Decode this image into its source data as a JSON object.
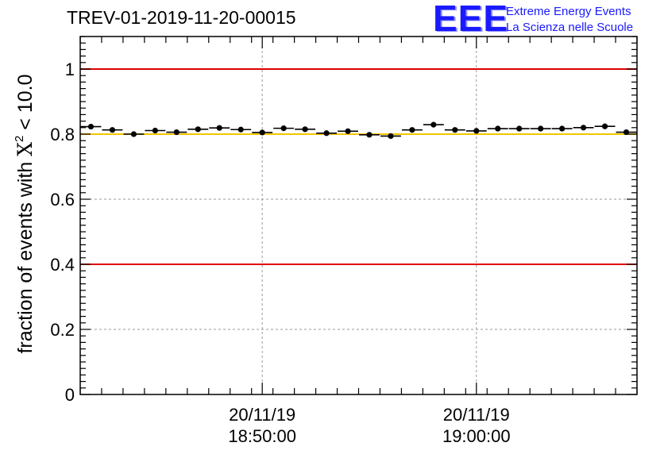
{
  "header": {
    "title": "TREV-01-2019-11-20-00015",
    "logo_letters": "EEE",
    "logo_line1": "Extreme Energy Events",
    "logo_line2": "La Scienza nelle Scuole"
  },
  "colors": {
    "threshold_red": "#e00000",
    "threshold_yellow": "#f5c400",
    "logo_blue": "#1a1aff",
    "marker": "#000000",
    "grid": "#999999"
  },
  "chart_data": {
    "type": "scatter",
    "title": "TREV-01-2019-11-20-00015",
    "ylabel_prefix": "fraction of events with ",
    "ylabel_symbol": "X",
    "ylabel_sup": "2",
    "ylabel_suffix": " < 10.0",
    "xlabel": "",
    "ylim": [
      0,
      1.1
    ],
    "yticks": [
      0,
      0.2,
      0.4,
      0.6,
      0.8,
      1
    ],
    "ytick_labels": [
      "0",
      "0.2",
      "0.4",
      "0.6",
      "0.8",
      "1"
    ],
    "xlim": [
      0,
      26
    ],
    "xticks": [
      8.5,
      18.5
    ],
    "xtick_labels": [
      [
        "20/11/19",
        "18:50:00"
      ],
      [
        "20/11/19",
        "19:00:00"
      ]
    ],
    "grid": true,
    "hlines": [
      {
        "value": 1.0,
        "color": "red"
      },
      {
        "value": 0.8,
        "color": "yellow"
      },
      {
        "value": 0.4,
        "color": "red"
      }
    ],
    "x": [
      0.5,
      1.5,
      2.5,
      3.5,
      4.5,
      5.5,
      6.5,
      7.5,
      8.5,
      9.5,
      10.5,
      11.5,
      12.5,
      13.5,
      14.5,
      15.5,
      16.5,
      17.5,
      18.5,
      19.5,
      20.5,
      21.5,
      22.5,
      23.5,
      24.5,
      25.5
    ],
    "values": [
      0.823,
      0.813,
      0.8,
      0.811,
      0.806,
      0.815,
      0.819,
      0.814,
      0.805,
      0.818,
      0.815,
      0.803,
      0.809,
      0.798,
      0.794,
      0.813,
      0.829,
      0.813,
      0.81,
      0.817,
      0.817,
      0.817,
      0.817,
      0.82,
      0.824,
      0.806
    ]
  }
}
